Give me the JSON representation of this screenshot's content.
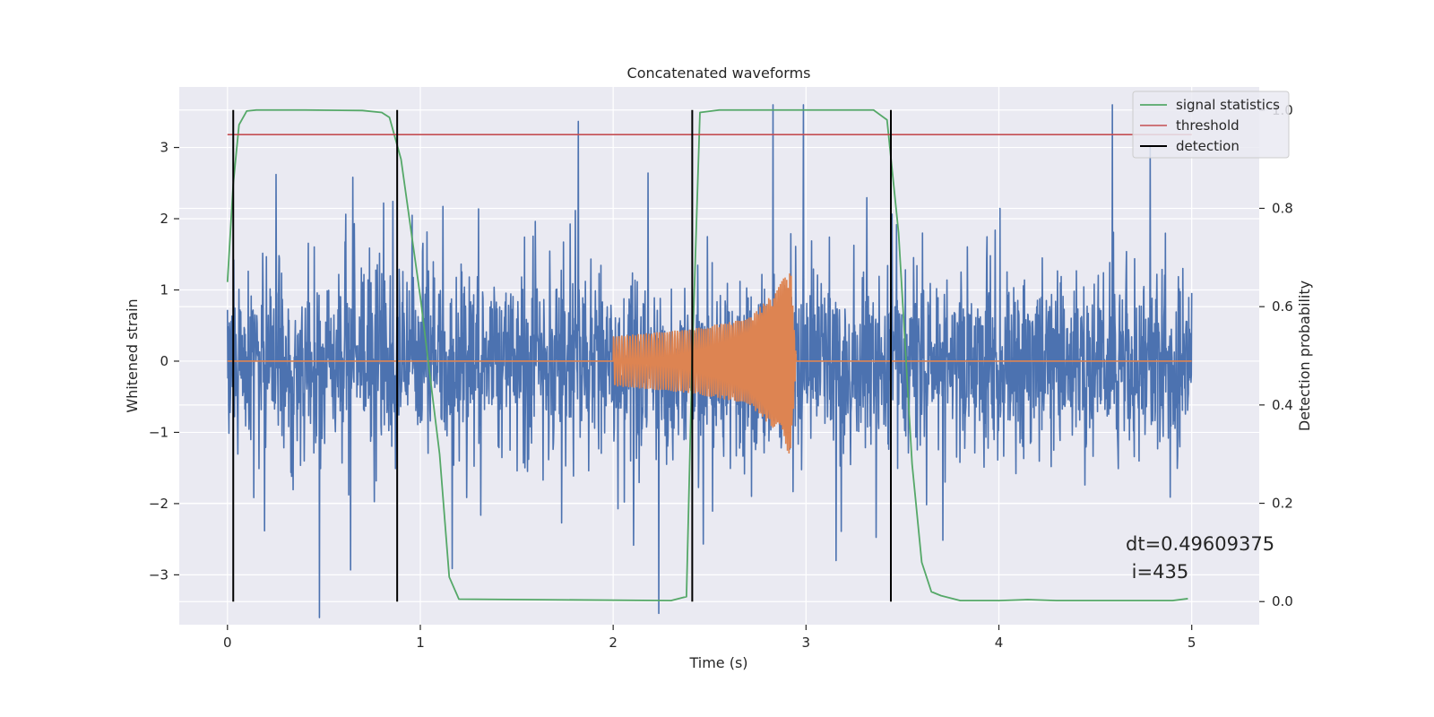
{
  "chart_data": {
    "type": "line",
    "title": "Concatenated waveforms",
    "xlabel": "Time (s)",
    "ylabel_left": "Whitened strain",
    "ylabel_right": "Detection probability",
    "xlim": [
      -0.25,
      5.35
    ],
    "ylim_left": [
      -3.7,
      3.85
    ],
    "ylim_right": [
      -0.047,
      1.047
    ],
    "x_ticks": [
      0,
      1,
      2,
      3,
      4,
      5
    ],
    "y_ticks_left": [
      -3,
      -2,
      -1,
      0,
      1,
      2,
      3
    ],
    "y_ticks_right": [
      0.0,
      0.2,
      0.4,
      0.6,
      0.8,
      1.0
    ],
    "x_tick_labels": [
      "0",
      "1",
      "2",
      "3",
      "4",
      "5"
    ],
    "y_tick_labels_left": [
      "−3",
      "−2",
      "−1",
      "0",
      "1",
      "2",
      "3"
    ],
    "y_tick_labels_right": [
      "0.0",
      "0.2",
      "0.4",
      "0.6",
      "0.8",
      "1.0"
    ],
    "grid": true,
    "legend_position": "top-right",
    "colors": {
      "background": "#eaeaf2",
      "grid": "#ffffff",
      "strain": "#4c72b0",
      "injected": "#dd8452",
      "signal_statistics": "#55a868",
      "threshold": "#c44e52",
      "detection": "#000000"
    },
    "series": [
      {
        "name": "",
        "axis": "left",
        "kind": "noise",
        "x_range": [
          0,
          5
        ],
        "typical_amplitude": 1.4,
        "max_excursion": 3.6
      },
      {
        "name": "",
        "axis": "left",
        "kind": "chirp",
        "x": [
          0,
          2.0,
          2.0,
          2.4,
          2.7,
          2.85,
          2.92,
          2.95,
          5.0
        ],
        "envelope": [
          0,
          0,
          0.35,
          0.45,
          0.6,
          1.0,
          1.35,
          0,
          0
        ]
      },
      {
        "name": "signal statistics",
        "axis": "right",
        "x": [
          0.0,
          0.03,
          0.06,
          0.1,
          0.15,
          0.4,
          0.7,
          0.8,
          0.84,
          0.9,
          1.0,
          1.1,
          1.15,
          1.2,
          2.3,
          2.38,
          2.41,
          2.45,
          2.55,
          3.35,
          3.42,
          3.48,
          3.55,
          3.6,
          3.65,
          3.7,
          3.8,
          4.0,
          4.15,
          4.3,
          4.9,
          4.98
        ],
        "y": [
          0.65,
          0.85,
          0.97,
          0.998,
          1.0,
          1.0,
          0.999,
          0.995,
          0.985,
          0.9,
          0.62,
          0.3,
          0.05,
          0.005,
          0.002,
          0.01,
          0.5,
          0.995,
          1.0,
          1.0,
          0.98,
          0.75,
          0.28,
          0.08,
          0.02,
          0.012,
          0.002,
          0.002,
          0.004,
          0.002,
          0.002,
          0.006
        ]
      },
      {
        "name": "threshold",
        "axis": "right",
        "x": [
          0,
          5
        ],
        "y": [
          0.95,
          0.95
        ]
      }
    ],
    "detections": {
      "name": "detection",
      "x": [
        0.03,
        0.88,
        2.41,
        3.44
      ]
    },
    "annotation": {
      "line1": "dt=0.49609375",
      "line2": " i=435"
    }
  }
}
